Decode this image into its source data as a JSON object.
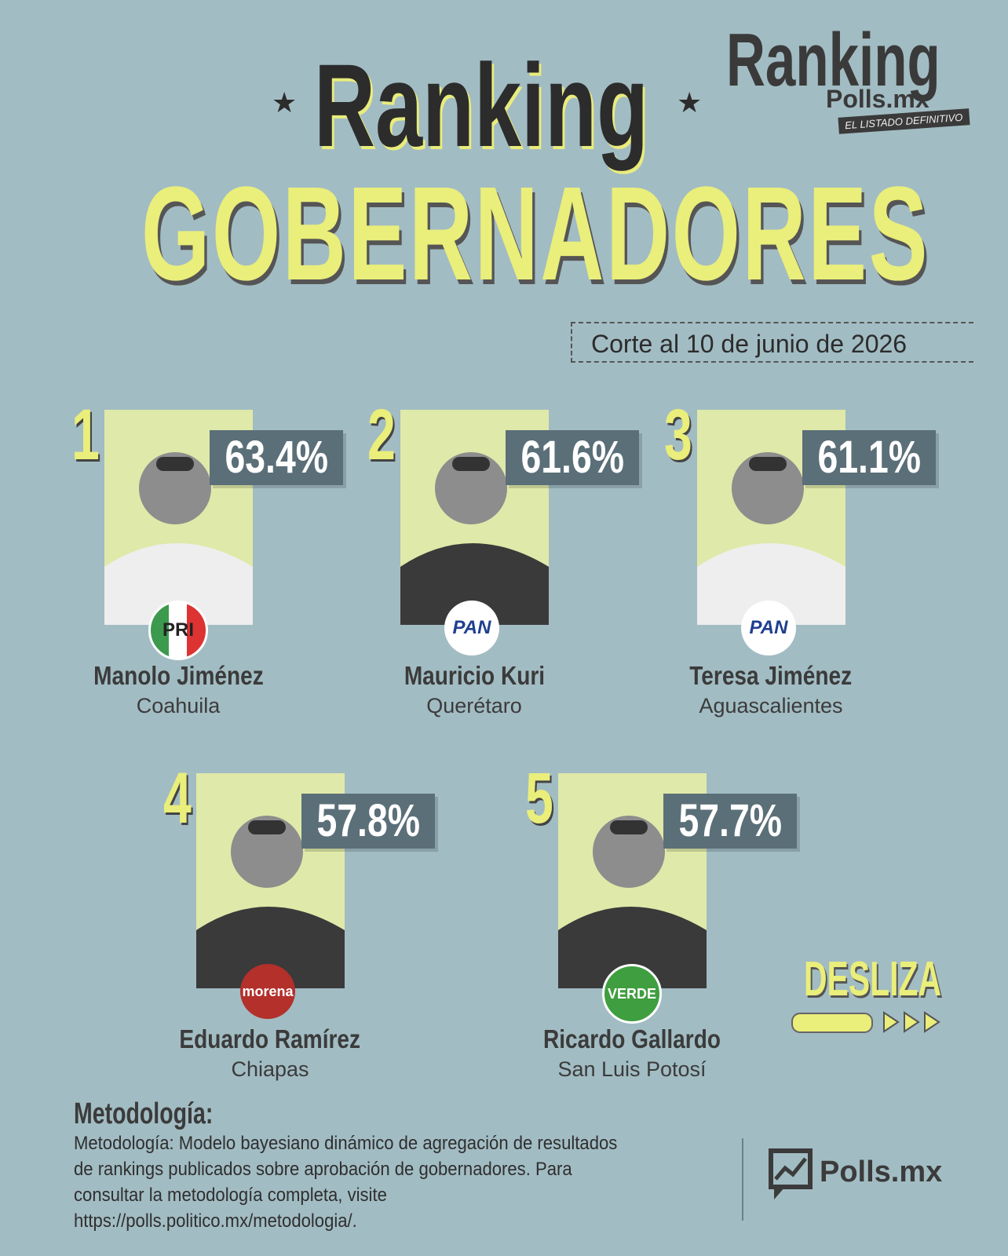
{
  "logo": {
    "title": "Ranking",
    "subtitle": "Polls.mx",
    "tagline": "EL LISTADO DEFINITIVO"
  },
  "header": {
    "title": "Ranking",
    "subtitle": "GOBERNADORES",
    "date": "Corte al 10 de junio de 2026"
  },
  "candidates": [
    {
      "rank": "1",
      "percent": "63.4%",
      "name": "Manolo Jiménez",
      "state": "Coahuila",
      "party": "PRI"
    },
    {
      "rank": "2",
      "percent": "61.6%",
      "name": "Mauricio Kuri",
      "state": "Querétaro",
      "party": "PAN"
    },
    {
      "rank": "3",
      "percent": "61.1%",
      "name": "Teresa Jiménez",
      "state": "Aguascalientes",
      "party": "PAN"
    },
    {
      "rank": "4",
      "percent": "57.8%",
      "name": "Eduardo Ramírez",
      "state": "Chiapas",
      "party": "morena"
    },
    {
      "rank": "5",
      "percent": "57.7%",
      "name": "Ricardo Gallardo",
      "state": "San Luis Potosí",
      "party": "VERDE"
    }
  ],
  "swipe": "DESLIZA",
  "methodology": {
    "title": "Metodología:",
    "text": "Metodología: Modelo bayesiano dinámico de agregación de resultados de rankings publicados sobre aprobación de gobernadores. Para consultar la metodología completa, visite https://polls.politico.mx/metodologia/."
  },
  "footer": {
    "logo": "Polls.mx"
  }
}
